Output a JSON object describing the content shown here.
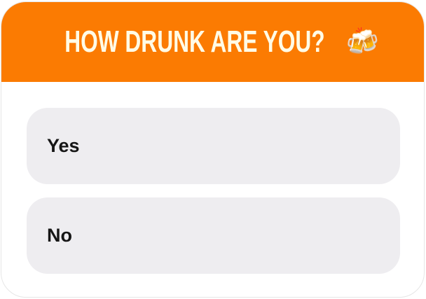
{
  "poll": {
    "question": "HOW DRUNK ARE YOU?",
    "emoji": "🍻",
    "header_color": "#FB7B02",
    "options": [
      {
        "label": "Yes"
      },
      {
        "label": "No"
      }
    ]
  }
}
